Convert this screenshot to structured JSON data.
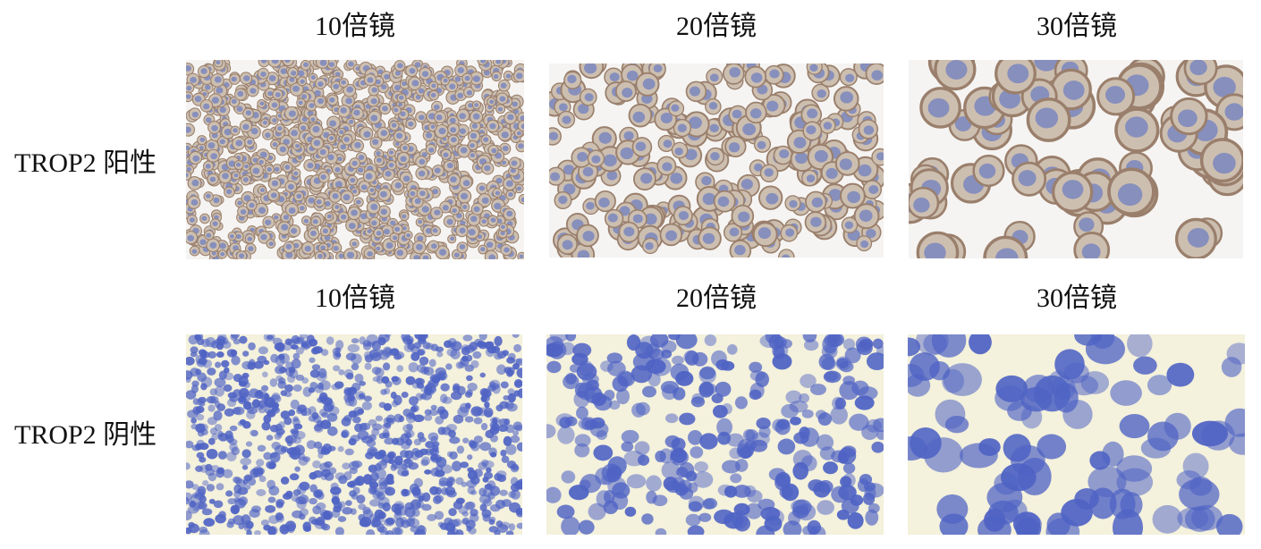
{
  "rows": [
    {
      "label": "TROP2 阳性",
      "stain": "positive",
      "columns": [
        "10倍镜",
        "20倍镜",
        "30倍镜"
      ]
    },
    {
      "label": "TROP2 阴性",
      "stain": "negative",
      "columns": [
        "10倍镜",
        "20倍镜",
        "30倍镜"
      ]
    }
  ],
  "colors": {
    "positive_background": "#f5f4f2",
    "positive_membrane": "#9a7f6c",
    "positive_nucleus": "#6f7fc0",
    "negative_background": "#f4f1dc",
    "negative_nucleus": "#4f63c4"
  }
}
